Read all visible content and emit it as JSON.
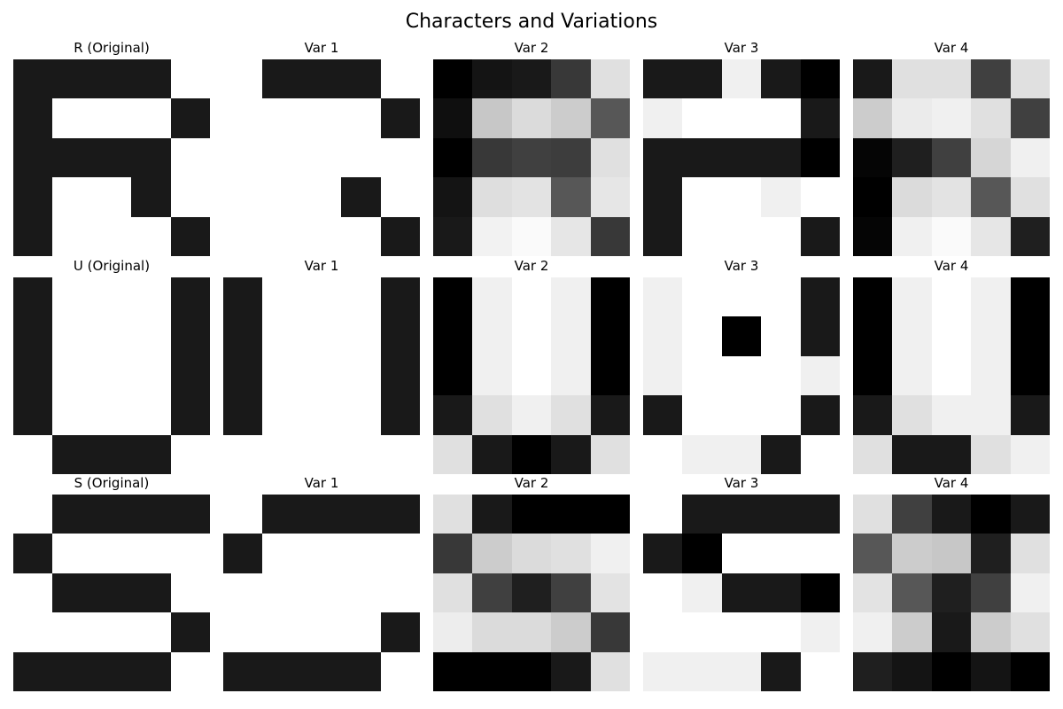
{
  "chart_data": {
    "type": "heatmap",
    "title": "Characters and Variations",
    "colormap": "gray_r",
    "value_range": [
      0,
      1
    ],
    "rows": [
      {
        "character": "R",
        "panels": [
          {
            "title": "R (Original)",
            "grid": [
              [
                0.9,
                0.9,
                0.9,
                0.9,
                0
              ],
              [
                0.9,
                0,
                0,
                0,
                0.9
              ],
              [
                0.9,
                0.9,
                0.9,
                0.9,
                0
              ],
              [
                0.9,
                0,
                0,
                0.9,
                0
              ],
              [
                0.9,
                0,
                0,
                0,
                0.9
              ]
            ]
          },
          {
            "title": "Var 1",
            "grid": [
              [
                0,
                0.9,
                0.9,
                0.9,
                0
              ],
              [
                0,
                0,
                0,
                0,
                0.9
              ],
              [
                0,
                0,
                0,
                0,
                0
              ],
              [
                0,
                0,
                0,
                0.9,
                0
              ],
              [
                0,
                0,
                0,
                0,
                0.9
              ]
            ]
          },
          {
            "title": "Var 2",
            "grid": [
              [
                1,
                0.92,
                0.9,
                0.78,
                0.12
              ],
              [
                0.94,
                0.22,
                0.14,
                0.2,
                0.66
              ],
              [
                1,
                0.78,
                0.75,
                0.76,
                0.12
              ],
              [
                0.92,
                0.13,
                0.11,
                0.66,
                0.1
              ],
              [
                0.9,
                0.05,
                0.02,
                0.1,
                0.78
              ]
            ]
          },
          {
            "title": "Var 3",
            "grid": [
              [
                0.9,
                0.9,
                0.06,
                0.9,
                1
              ],
              [
                0.06,
                0,
                0,
                0,
                0.9
              ],
              [
                0.9,
                0.9,
                0.9,
                0.9,
                1
              ],
              [
                0.9,
                0,
                0,
                0.06,
                0
              ],
              [
                0.9,
                0,
                0,
                0,
                0.9
              ]
            ]
          },
          {
            "title": "Var 4",
            "grid": [
              [
                0.9,
                0.12,
                0.12,
                0.75,
                0.12
              ],
              [
                0.2,
                0.08,
                0.06,
                0.12,
                0.75
              ],
              [
                0.98,
                0.88,
                0.75,
                0.16,
                0.06
              ],
              [
                1,
                0.14,
                0.11,
                0.66,
                0.12
              ],
              [
                0.98,
                0.06,
                0.02,
                0.1,
                0.88
              ]
            ]
          }
        ]
      },
      {
        "character": "U",
        "panels": [
          {
            "title": "U (Original)",
            "grid": [
              [
                0.9,
                0,
                0,
                0,
                0.9
              ],
              [
                0.9,
                0,
                0,
                0,
                0.9
              ],
              [
                0.9,
                0,
                0,
                0,
                0.9
              ],
              [
                0.9,
                0,
                0,
                0,
                0.9
              ],
              [
                0,
                0.9,
                0.9,
                0.9,
                0
              ]
            ]
          },
          {
            "title": "Var 1",
            "grid": [
              [
                0.9,
                0,
                0,
                0,
                0.9
              ],
              [
                0.9,
                0,
                0,
                0,
                0.9
              ],
              [
                0.9,
                0,
                0,
                0,
                0.9
              ],
              [
                0.9,
                0,
                0,
                0,
                0.9
              ],
              [
                0,
                0,
                0,
                0,
                0
              ]
            ]
          },
          {
            "title": "Var 2",
            "grid": [
              [
                1,
                0.06,
                0,
                0.06,
                1
              ],
              [
                1,
                0.06,
                0,
                0.06,
                1
              ],
              [
                1,
                0.06,
                0,
                0.06,
                1
              ],
              [
                0.9,
                0.12,
                0.06,
                0.12,
                0.9
              ],
              [
                0.12,
                0.9,
                1,
                0.9,
                0.12
              ]
            ]
          },
          {
            "title": "Var 3",
            "grid": [
              [
                0.06,
                0,
                0,
                0,
                0.9
              ],
              [
                0.06,
                0,
                1,
                0,
                0.9
              ],
              [
                0.06,
                0,
                0,
                0,
                0.06
              ],
              [
                0.9,
                0,
                0,
                0,
                0.9
              ],
              [
                0,
                0.06,
                0.06,
                0.9,
                0
              ]
            ]
          },
          {
            "title": "Var 4",
            "grid": [
              [
                1,
                0.06,
                0,
                0.06,
                1
              ],
              [
                1,
                0.06,
                0,
                0.06,
                1
              ],
              [
                1,
                0.06,
                0,
                0.06,
                1
              ],
              [
                0.9,
                0.12,
                0.06,
                0.06,
                0.9
              ],
              [
                0.12,
                0.9,
                0.9,
                0.12,
                0.06
              ]
            ]
          }
        ]
      },
      {
        "character": "S",
        "panels": [
          {
            "title": "S (Original)",
            "grid": [
              [
                0,
                0.9,
                0.9,
                0.9,
                0.9
              ],
              [
                0.9,
                0,
                0,
                0,
                0
              ],
              [
                0,
                0.9,
                0.9,
                0.9,
                0
              ],
              [
                0,
                0,
                0,
                0,
                0.9
              ],
              [
                0.9,
                0.9,
                0.9,
                0.9,
                0
              ]
            ]
          },
          {
            "title": "Var 1",
            "grid": [
              [
                0,
                0.9,
                0.9,
                0.9,
                0.9
              ],
              [
                0.9,
                0,
                0,
                0,
                0
              ],
              [
                0,
                0,
                0,
                0,
                0
              ],
              [
                0,
                0,
                0,
                0,
                0.9
              ],
              [
                0.9,
                0.9,
                0.9,
                0.9,
                0
              ]
            ]
          },
          {
            "title": "Var 2",
            "grid": [
              [
                0.12,
                0.9,
                1,
                1,
                1
              ],
              [
                0.78,
                0.2,
                0.14,
                0.12,
                0.06
              ],
              [
                0.12,
                0.75,
                0.88,
                0.75,
                0.11
              ],
              [
                0.07,
                0.14,
                0.14,
                0.2,
                0.78
              ],
              [
                1,
                1,
                1,
                0.9,
                0.12
              ]
            ]
          },
          {
            "title": "Var 3",
            "grid": [
              [
                0,
                0.9,
                0.9,
                0.9,
                0.9
              ],
              [
                0.9,
                1,
                0,
                0,
                0
              ],
              [
                0,
                0.06,
                0.9,
                0.9,
                1
              ],
              [
                0,
                0,
                0,
                0,
                0.06
              ],
              [
                0.06,
                0.06,
                0.06,
                0.9,
                0
              ]
            ]
          },
          {
            "title": "Var 4",
            "grid": [
              [
                0.12,
                0.75,
                0.9,
                1,
                0.9
              ],
              [
                0.66,
                0.2,
                0.22,
                0.88,
                0.12
              ],
              [
                0.11,
                0.66,
                0.88,
                0.75,
                0.06
              ],
              [
                0.06,
                0.2,
                0.9,
                0.2,
                0.12
              ],
              [
                0.88,
                0.92,
                1,
                0.92,
                1
              ]
            ]
          }
        ]
      }
    ]
  }
}
